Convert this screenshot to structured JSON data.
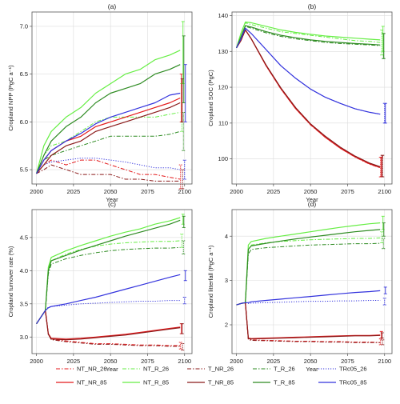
{
  "figure": {
    "series_styles": [
      {
        "key": "NT_NR_26",
        "name": "NT_NR_26",
        "color": "#e41a1c",
        "dash": "dashdot"
      },
      {
        "key": "NT_R_26",
        "name": "NT_R_26",
        "color": "#66ee44",
        "dash": "dashdot"
      },
      {
        "key": "T_NR_26",
        "name": "T_NR_26",
        "color": "#8b1a1a",
        "dash": "dashdot"
      },
      {
        "key": "T_R_26",
        "name": "T_R_26",
        "color": "#2e8b22",
        "dash": "dashdot"
      },
      {
        "key": "TRc05_26",
        "name": "TRc05_26",
        "color": "#3333dd",
        "dash": "dotted"
      },
      {
        "key": "NT_NR_85",
        "name": "NT_NR_85",
        "color": "#e41a1c",
        "dash": "solid"
      },
      {
        "key": "NT_R_85",
        "name": "NT_R_85",
        "color": "#66ee44",
        "dash": "solid"
      },
      {
        "key": "T_NR_85",
        "name": "T_NR_85",
        "color": "#8b1a1a",
        "dash": "solid"
      },
      {
        "key": "T_R_85",
        "name": "T_R_85",
        "color": "#2e8b22",
        "dash": "solid"
      },
      {
        "key": "TRc05_85",
        "name": "TRc05_85",
        "color": "#3333dd",
        "dash": "solid"
      }
    ]
  },
  "chart_data": [
    {
      "type": "line",
      "panel": "(a)",
      "title": "(a)",
      "xlabel": "Year",
      "ylabel": "Cropland NPP (PgC a⁻¹)",
      "xlim": [
        1997,
        2105
      ],
      "ylim": [
        5.35,
        7.15
      ],
      "xticks": [
        2000,
        2025,
        2050,
        2075,
        2100
      ],
      "yticks": [
        5.5,
        6.0,
        6.5,
        7.0
      ],
      "ytick_labels": [
        "5.5",
        "6.0",
        "6.5",
        "7.0"
      ],
      "grid": true,
      "x": [
        2000,
        2005,
        2010,
        2020,
        2030,
        2040,
        2050,
        2060,
        2070,
        2080,
        2090,
        2097
      ],
      "series": [
        {
          "key": "NT_NR_26",
          "values": [
            5.46,
            5.55,
            5.6,
            5.55,
            5.6,
            5.6,
            5.55,
            5.5,
            5.45,
            5.45,
            5.42,
            5.4
          ],
          "error": [
            5.3,
            5.55
          ]
        },
        {
          "key": "NT_R_26",
          "values": [
            5.46,
            5.65,
            5.75,
            5.8,
            5.9,
            6.0,
            6.05,
            6.05,
            6.05,
            6.05,
            6.08,
            6.1
          ],
          "error": [
            5.9,
            6.4
          ]
        },
        {
          "key": "T_NR_26",
          "values": [
            5.46,
            5.5,
            5.55,
            5.5,
            5.45,
            5.45,
            5.45,
            5.4,
            5.4,
            5.38,
            5.38,
            5.38
          ],
          "error": [
            5.3,
            5.5
          ]
        },
        {
          "key": "T_R_26",
          "values": [
            5.46,
            5.6,
            5.65,
            5.7,
            5.75,
            5.8,
            5.85,
            5.85,
            5.85,
            5.85,
            5.87,
            5.9
          ],
          "error": [
            5.7,
            6.1
          ]
        },
        {
          "key": "TRc05_26",
          "values": [
            5.46,
            5.55,
            5.58,
            5.6,
            5.62,
            5.62,
            5.6,
            5.58,
            5.55,
            5.52,
            5.52,
            5.5
          ],
          "error": [
            5.4,
            5.6
          ]
        },
        {
          "key": "NT_NR_85",
          "values": [
            5.46,
            5.6,
            5.7,
            5.8,
            5.85,
            5.95,
            6.0,
            6.05,
            6.1,
            6.15,
            6.2,
            6.25
          ],
          "error": [
            6.0,
            6.5
          ]
        },
        {
          "key": "NT_R_85",
          "values": [
            5.46,
            5.75,
            5.9,
            6.05,
            6.15,
            6.3,
            6.4,
            6.5,
            6.55,
            6.65,
            6.7,
            6.75
          ],
          "error": [
            6.4,
            7.05
          ]
        },
        {
          "key": "T_NR_85",
          "values": [
            5.46,
            5.55,
            5.65,
            5.75,
            5.8,
            5.9,
            5.95,
            6.0,
            6.05,
            6.1,
            6.15,
            6.2
          ],
          "error": [
            6.0,
            6.45
          ]
        },
        {
          "key": "T_R_85",
          "values": [
            5.46,
            5.65,
            5.8,
            5.95,
            6.05,
            6.2,
            6.3,
            6.35,
            6.4,
            6.5,
            6.55,
            6.6
          ],
          "error": [
            6.2,
            6.9
          ]
        },
        {
          "key": "TRc05_85",
          "values": [
            5.46,
            5.6,
            5.7,
            5.8,
            5.88,
            5.98,
            6.05,
            6.1,
            6.15,
            6.2,
            6.28,
            6.3
          ],
          "error": [
            6.0,
            6.6
          ]
        }
      ]
    },
    {
      "type": "line",
      "panel": "(b)",
      "title": "(b)",
      "xlabel": "Year",
      "ylabel": "Cropland SOC (PgC)",
      "xlim": [
        1997,
        2105
      ],
      "ylim": [
        93,
        141
      ],
      "xticks": [
        2000,
        2025,
        2050,
        2075,
        2100
      ],
      "yticks": [
        100,
        110,
        120,
        130,
        140
      ],
      "ytick_labels": [
        "100",
        "110",
        "120",
        "130",
        "140"
      ],
      "grid": true,
      "x": [
        2000,
        2003,
        2006,
        2010,
        2020,
        2030,
        2040,
        2050,
        2060,
        2070,
        2080,
        2090,
        2097
      ],
      "series": [
        {
          "key": "NT_NR_26",
          "values": [
            131,
            133,
            136,
            133.5,
            126,
            119.5,
            114,
            109.5,
            106,
            103,
            100.5,
            98.5,
            97.5
          ],
          "error": [
            95,
            100.5
          ]
        },
        {
          "key": "NT_R_26",
          "values": [
            131,
            135,
            138,
            137.5,
            136.5,
            135.5,
            135,
            134.5,
            134,
            133.5,
            133,
            132.8,
            132.5
          ],
          "error": [
            129,
            136
          ]
        },
        {
          "key": "T_NR_26",
          "values": [
            131,
            133,
            136,
            133.5,
            126.2,
            119.8,
            114.3,
            109.8,
            106.3,
            103.3,
            100.8,
            98.8,
            97.8
          ],
          "error": [
            95,
            101
          ]
        },
        {
          "key": "T_R_26",
          "values": [
            131,
            134,
            137,
            136.5,
            135.2,
            134.2,
            133.5,
            133,
            132.5,
            132.2,
            132,
            131.8,
            131.6
          ],
          "error": [
            128,
            135
          ]
        },
        {
          "key": "TRc05_26",
          "values": [
            131,
            133.5,
            136.5,
            135,
            130.5,
            126,
            122.5,
            119.5,
            117.2,
            115.5,
            114,
            113,
            112.5
          ],
          "error": [
            110,
            115.5
          ]
        },
        {
          "key": "NT_NR_85",
          "values": [
            131,
            133,
            136,
            133.5,
            126,
            119.6,
            114,
            109.6,
            106,
            103,
            100.6,
            98.6,
            97.6
          ],
          "error": [
            95,
            100.5
          ]
        },
        {
          "key": "NT_R_85",
          "values": [
            131,
            135,
            138.2,
            138,
            137,
            136,
            135.3,
            134.8,
            134.3,
            134,
            133.7,
            133.4,
            133.2
          ],
          "error": [
            130,
            137
          ]
        },
        {
          "key": "T_NR_85",
          "values": [
            131,
            133,
            136,
            133.5,
            126.2,
            119.8,
            114.3,
            109.8,
            106.3,
            103.3,
            100.8,
            98.8,
            97.8
          ],
          "error": [
            95,
            101
          ]
        },
        {
          "key": "T_R_85",
          "values": [
            131,
            134,
            137.2,
            136.8,
            135.5,
            134.5,
            133.8,
            133.2,
            132.8,
            132.5,
            132.2,
            132,
            131.8
          ],
          "error": [
            128,
            135
          ]
        },
        {
          "key": "TRc05_85",
          "values": [
            131,
            133.5,
            136.5,
            135,
            130.5,
            126,
            122.5,
            119.5,
            117.2,
            115.5,
            114,
            113,
            112.5
          ],
          "error": [
            110,
            115.5
          ]
        }
      ]
    },
    {
      "type": "line",
      "panel": "(c)",
      "title": "(c)",
      "xlabel": "Year",
      "ylabel": "Cropland turnover rate (%)",
      "xlim": [
        1997,
        2105
      ],
      "ylim": [
        2.75,
        4.92
      ],
      "xticks": [
        2000,
        2025,
        2050,
        2075,
        2100
      ],
      "yticks": [
        3.0,
        3.5,
        4.0,
        4.5
      ],
      "ytick_labels": [
        "3.0",
        "3.5",
        "4.0",
        "4.5"
      ],
      "grid": true,
      "x": [
        2000,
        2003,
        2006,
        2008,
        2010,
        2020,
        2030,
        2040,
        2050,
        2060,
        2070,
        2080,
        2090,
        2097
      ],
      "series": [
        {
          "key": "NT_NR_26",
          "values": [
            3.2,
            3.3,
            3.4,
            3.05,
            2.97,
            2.94,
            2.92,
            2.9,
            2.9,
            2.89,
            2.88,
            2.88,
            2.87,
            2.87
          ],
          "error": [
            2.82,
            2.92
          ]
        },
        {
          "key": "NT_R_26",
          "values": [
            3.2,
            3.3,
            3.4,
            4.0,
            4.15,
            4.25,
            4.32,
            4.37,
            4.4,
            4.42,
            4.43,
            4.44,
            4.44,
            4.45
          ],
          "error": [
            4.35,
            4.55
          ]
        },
        {
          "key": "T_NR_26",
          "values": [
            3.2,
            3.3,
            3.4,
            3.04,
            2.96,
            2.93,
            2.91,
            2.89,
            2.89,
            2.88,
            2.87,
            2.87,
            2.86,
            2.86
          ],
          "error": [
            2.8,
            2.9
          ]
        },
        {
          "key": "T_R_26",
          "values": [
            3.2,
            3.3,
            3.4,
            3.95,
            4.1,
            4.18,
            4.23,
            4.27,
            4.3,
            4.32,
            4.33,
            4.34,
            4.34,
            4.35
          ],
          "error": [
            4.25,
            4.45
          ]
        },
        {
          "key": "TRc05_26",
          "values": [
            3.2,
            3.3,
            3.4,
            3.45,
            3.46,
            3.48,
            3.5,
            3.51,
            3.52,
            3.53,
            3.54,
            3.54,
            3.55,
            3.55
          ],
          "error": [
            3.5,
            3.6
          ]
        },
        {
          "key": "NT_NR_85",
          "values": [
            3.2,
            3.3,
            3.4,
            3.05,
            2.98,
            2.97,
            2.98,
            3.0,
            3.02,
            3.04,
            3.07,
            3.1,
            3.13,
            3.15
          ],
          "error": [
            3.05,
            3.2
          ]
        },
        {
          "key": "NT_R_85",
          "values": [
            3.2,
            3.3,
            3.4,
            4.05,
            4.2,
            4.3,
            4.38,
            4.45,
            4.52,
            4.58,
            4.63,
            4.7,
            4.75,
            4.8
          ],
          "error": [
            4.7,
            4.85
          ]
        },
        {
          "key": "T_NR_85",
          "values": [
            3.2,
            3.3,
            3.4,
            3.04,
            2.97,
            2.96,
            2.97,
            2.99,
            3.01,
            3.03,
            3.06,
            3.09,
            3.12,
            3.14
          ],
          "error": [
            3.05,
            3.2
          ]
        },
        {
          "key": "T_R_85",
          "values": [
            3.2,
            3.3,
            3.4,
            4.0,
            4.15,
            4.23,
            4.31,
            4.38,
            4.45,
            4.52,
            4.58,
            4.64,
            4.7,
            4.76
          ],
          "error": [
            4.65,
            4.82
          ]
        },
        {
          "key": "TRc05_85",
          "values": [
            3.2,
            3.3,
            3.4,
            3.44,
            3.46,
            3.5,
            3.55,
            3.6,
            3.66,
            3.72,
            3.78,
            3.84,
            3.9,
            3.94
          ],
          "error": [
            3.85,
            4.0
          ]
        }
      ]
    },
    {
      "type": "line",
      "panel": "(d)",
      "title": "(d)",
      "xlabel": "Year",
      "ylabel": "Cropland litterfall (PgC a⁻¹)",
      "xlim": [
        1997,
        2105
      ],
      "ylim": [
        1.35,
        4.6
      ],
      "xticks": [
        2000,
        2025,
        2050,
        2075,
        2100
      ],
      "yticks": [
        2,
        3,
        4
      ],
      "ytick_labels": [
        "2",
        "3",
        "4"
      ],
      "grid": true,
      "x": [
        2000,
        2003,
        2006,
        2008,
        2010,
        2020,
        2030,
        2040,
        2050,
        2060,
        2070,
        2080,
        2090,
        2097
      ],
      "series": [
        {
          "key": "NT_NR_26",
          "values": [
            2.45,
            2.48,
            2.5,
            1.68,
            1.66,
            1.65,
            1.64,
            1.63,
            1.63,
            1.62,
            1.62,
            1.61,
            1.61,
            1.6
          ],
          "error": [
            1.55,
            1.68
          ]
        },
        {
          "key": "NT_R_26",
          "values": [
            2.45,
            2.48,
            2.5,
            3.7,
            3.8,
            3.85,
            3.88,
            3.9,
            3.92,
            3.93,
            3.94,
            3.95,
            3.95,
            3.96
          ],
          "error": [
            3.85,
            4.1
          ]
        },
        {
          "key": "T_NR_26",
          "values": [
            2.45,
            2.48,
            2.5,
            1.67,
            1.65,
            1.64,
            1.63,
            1.62,
            1.62,
            1.61,
            1.61,
            1.6,
            1.6,
            1.6
          ],
          "error": [
            1.55,
            1.66
          ]
        },
        {
          "key": "T_R_26",
          "values": [
            2.45,
            2.48,
            2.5,
            3.6,
            3.7,
            3.74,
            3.76,
            3.78,
            3.8,
            3.81,
            3.82,
            3.83,
            3.83,
            3.84
          ],
          "error": [
            3.72,
            3.95
          ]
        },
        {
          "key": "TRc05_26",
          "values": [
            2.45,
            2.48,
            2.5,
            2.48,
            2.49,
            2.5,
            2.51,
            2.52,
            2.53,
            2.53,
            2.54,
            2.54,
            2.55,
            2.55
          ],
          "error": [
            2.45,
            2.6
          ]
        },
        {
          "key": "NT_NR_85",
          "values": [
            2.45,
            2.48,
            2.5,
            1.7,
            1.69,
            1.7,
            1.71,
            1.72,
            1.73,
            1.74,
            1.75,
            1.76,
            1.76,
            1.77
          ],
          "error": [
            1.7,
            1.85
          ]
        },
        {
          "key": "NT_R_85",
          "values": [
            2.45,
            2.48,
            2.5,
            3.8,
            3.88,
            3.95,
            4.0,
            4.05,
            4.1,
            4.15,
            4.2,
            4.24,
            4.28,
            4.3
          ],
          "error": [
            4.15,
            4.45
          ]
        },
        {
          "key": "T_NR_85",
          "values": [
            2.45,
            2.48,
            2.5,
            1.69,
            1.68,
            1.69,
            1.7,
            1.71,
            1.72,
            1.73,
            1.74,
            1.75,
            1.75,
            1.76
          ],
          "error": [
            1.7,
            1.82
          ]
        },
        {
          "key": "T_R_85",
          "values": [
            2.45,
            2.48,
            2.5,
            3.7,
            3.78,
            3.84,
            3.89,
            3.94,
            3.98,
            4.02,
            4.06,
            4.1,
            4.13,
            4.15
          ],
          "error": [
            4.0,
            4.3
          ]
        },
        {
          "key": "TRc05_85",
          "values": [
            2.45,
            2.48,
            2.5,
            2.5,
            2.52,
            2.55,
            2.58,
            2.61,
            2.64,
            2.67,
            2.7,
            2.73,
            2.75,
            2.77
          ],
          "error": [
            2.7,
            2.85
          ]
        }
      ]
    }
  ]
}
